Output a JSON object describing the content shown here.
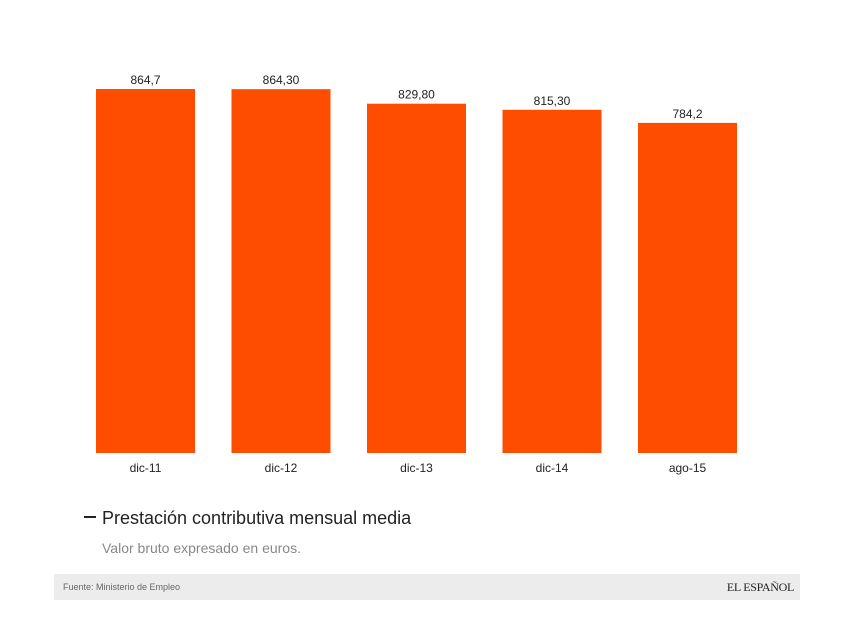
{
  "chart_data": {
    "type": "bar",
    "categories": [
      "dic-11",
      "dic-12",
      "dic-13",
      "dic-14",
      "ago-15"
    ],
    "values": [
      864.7,
      864.3,
      829.8,
      815.3,
      784.2
    ],
    "value_labels": [
      "864,7",
      "864,30",
      "829,80",
      "815,30",
      "784,2"
    ],
    "title": "Prestación contributiva mensual media",
    "subtitle": "Valor bruto expresado en euros.",
    "xlabel": "",
    "ylabel": "",
    "ylim": [
      0,
      864.7
    ],
    "grid": false,
    "bar_color": "#ff4d00"
  },
  "footer": {
    "source": "Fuente: Ministerio de Empleo",
    "logo": "EL ESPAÑOL"
  }
}
